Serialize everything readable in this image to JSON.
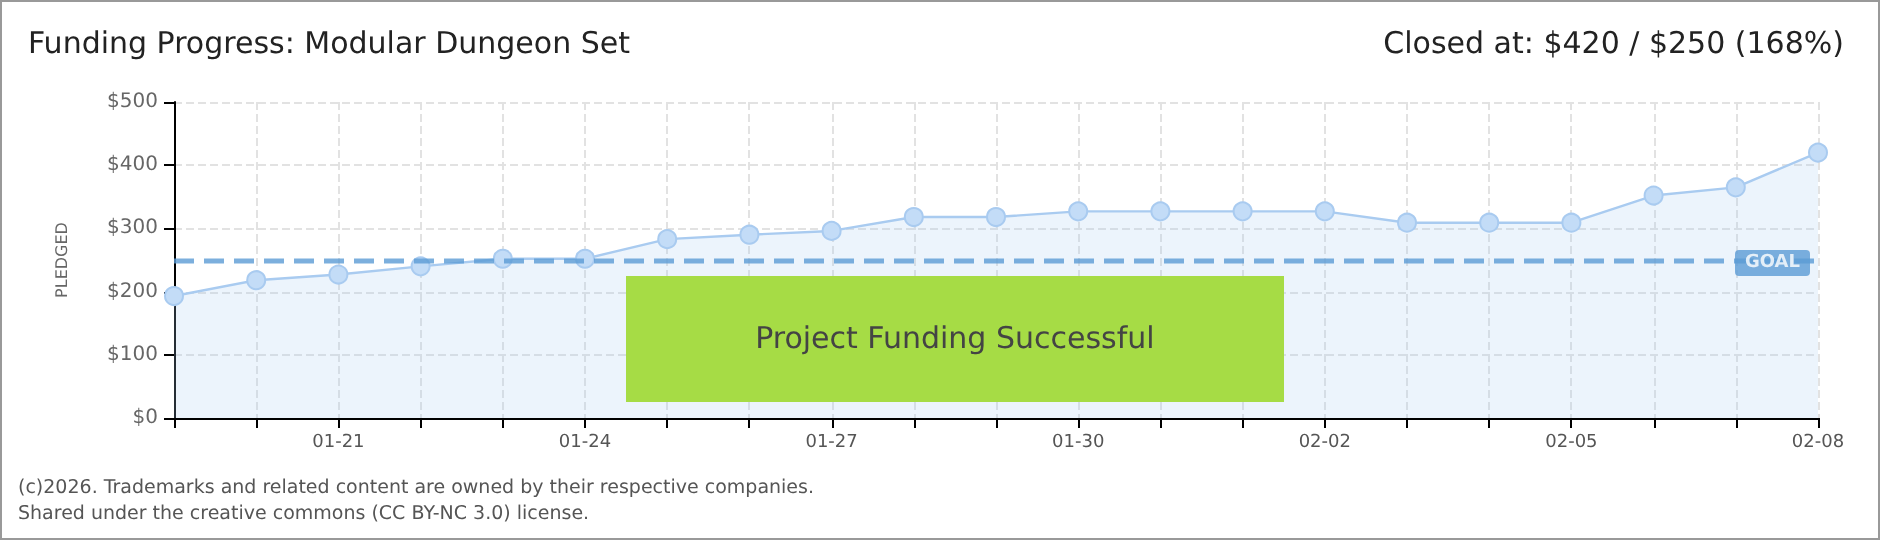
{
  "chart_data": {
    "type": "area",
    "title": "Funding Progress: Modular Dungeon Set",
    "subtitle": "Closed at: $420 / $250 (168%)",
    "ylabel": "PLEDGED",
    "x": [
      "--01-19",
      "--01-20",
      "--01-21",
      "--01-22",
      "--01-23",
      "--01-24",
      "--01-25",
      "--01-26",
      "--01-27",
      "--01-28",
      "--01-29",
      "--01-30",
      "--01-31",
      "--02-01",
      "--02-02",
      "--02-03",
      "--02-04",
      "--02-05",
      "--02-06",
      "--02-07",
      "--02-08"
    ],
    "series": [
      {
        "color": "#a9cbf0",
        "values": [
          193,
          218,
          227,
          240,
          252,
          252,
          283,
          290,
          296,
          318,
          318,
          327,
          327,
          327,
          327,
          309,
          309,
          309,
          352,
          365,
          420
        ]
      }
    ],
    "xlim": [
      "--01-19",
      "--02-08"
    ],
    "xticks": [
      {
        "value": "--01-19",
        "label": null
      },
      {
        "value": "--01-20",
        "label": null
      },
      {
        "value": "--01-21",
        "label": "01-21"
      },
      {
        "value": "--01-22",
        "label": null
      },
      {
        "value": "--01-23",
        "label": null
      },
      {
        "value": "--01-24",
        "label": "01-24"
      },
      {
        "value": "--01-25",
        "label": null
      },
      {
        "value": "--01-26",
        "label": null
      },
      {
        "value": "--01-27",
        "label": "01-27"
      },
      {
        "value": "--01-28",
        "label": null
      },
      {
        "value": "--01-29",
        "label": null
      },
      {
        "value": "--01-30",
        "label": "01-30"
      },
      {
        "value": "--01-31",
        "label": null
      },
      {
        "value": "--02-01",
        "label": null
      },
      {
        "value": "--02-02",
        "label": "02-02"
      },
      {
        "value": "--02-03",
        "label": null
      },
      {
        "value": "--02-04",
        "label": null
      },
      {
        "value": "--02-05",
        "label": "02-05"
      },
      {
        "value": "--02-06",
        "label": null
      },
      {
        "value": "--02-07",
        "label": null
      },
      {
        "value": "--02-08",
        "label": "02-08"
      }
    ],
    "ylim": [
      0,
      500
    ],
    "yticks": [
      {
        "value": 0,
        "label": "$0"
      },
      {
        "value": 100,
        "label": "$100"
      },
      {
        "value": 200,
        "label": "$200"
      },
      {
        "value": 300,
        "label": "$300"
      },
      {
        "value": 400,
        "label": "$400"
      },
      {
        "value": 500,
        "label": "$500"
      }
    ],
    "ref_lines": [
      {
        "axis": "y",
        "value": 250,
        "label": "GOAL",
        "color": "#5b9bd5",
        "line_style": "dashed"
      }
    ],
    "annotations": [
      "Project Funding Successful",
      "(c)2026. Trademarks and related content are owned by their respective companies.",
      "Shared under the creative commons (CC BY-NC 3.0) license."
    ],
    "grid": true,
    "marker": "circle",
    "line_style": "solid"
  }
}
